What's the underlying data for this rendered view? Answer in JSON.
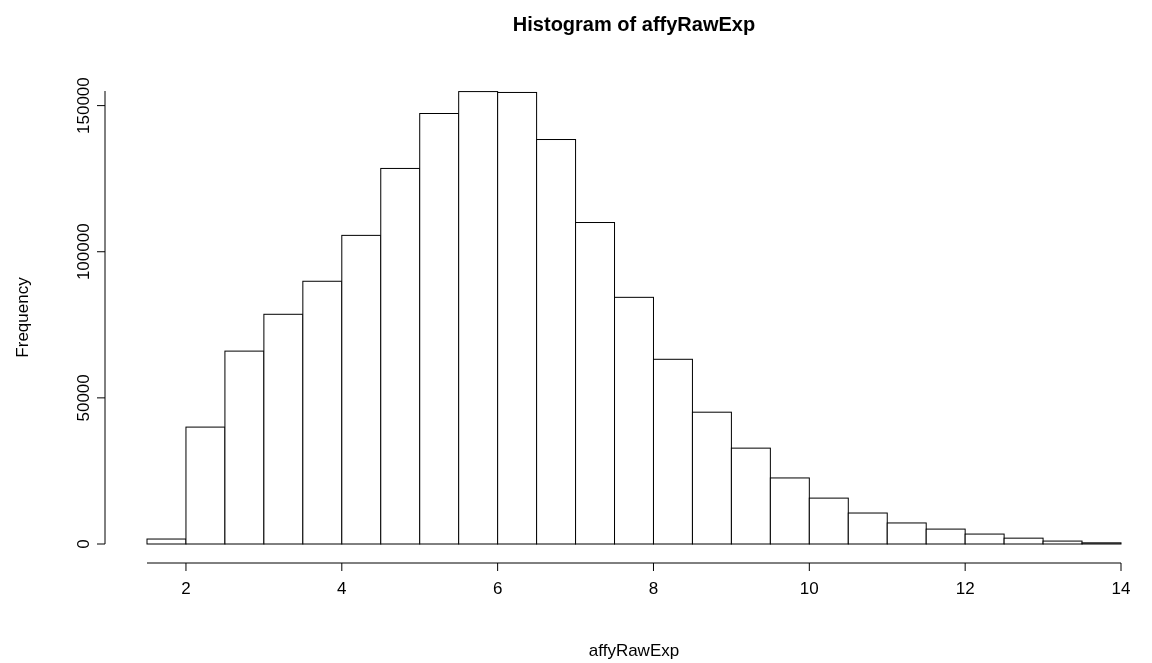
{
  "chart_data": {
    "type": "histogram",
    "title": "Histogram of affyRawExp",
    "xlabel": "affyRawExp",
    "ylabel": "Frequency",
    "bins": [
      1.5,
      2,
      2.5,
      3,
      3.5,
      4,
      4.5,
      5,
      5.5,
      6,
      6.5,
      7,
      7.5,
      8,
      8.5,
      9,
      9.5,
      10,
      10.5,
      11,
      11.5,
      12,
      12.5,
      13,
      13.5,
      14
    ],
    "values": [
      1700,
      40000,
      66000,
      78600,
      89900,
      105600,
      128500,
      147300,
      154800,
      154500,
      138400,
      110000,
      84400,
      63200,
      45100,
      32800,
      22600,
      15700,
      10600,
      7200,
      5100,
      3400,
      2000,
      1000,
      400
    ],
    "color": "#ffffff",
    "xlim": [
      1.5,
      14
    ],
    "xticks": [
      2,
      4,
      6,
      8,
      10,
      12,
      14
    ],
    "ylim": [
      0,
      155000
    ],
    "yticks": [
      0,
      50000,
      100000,
      150000
    ],
    "grid": false
  }
}
